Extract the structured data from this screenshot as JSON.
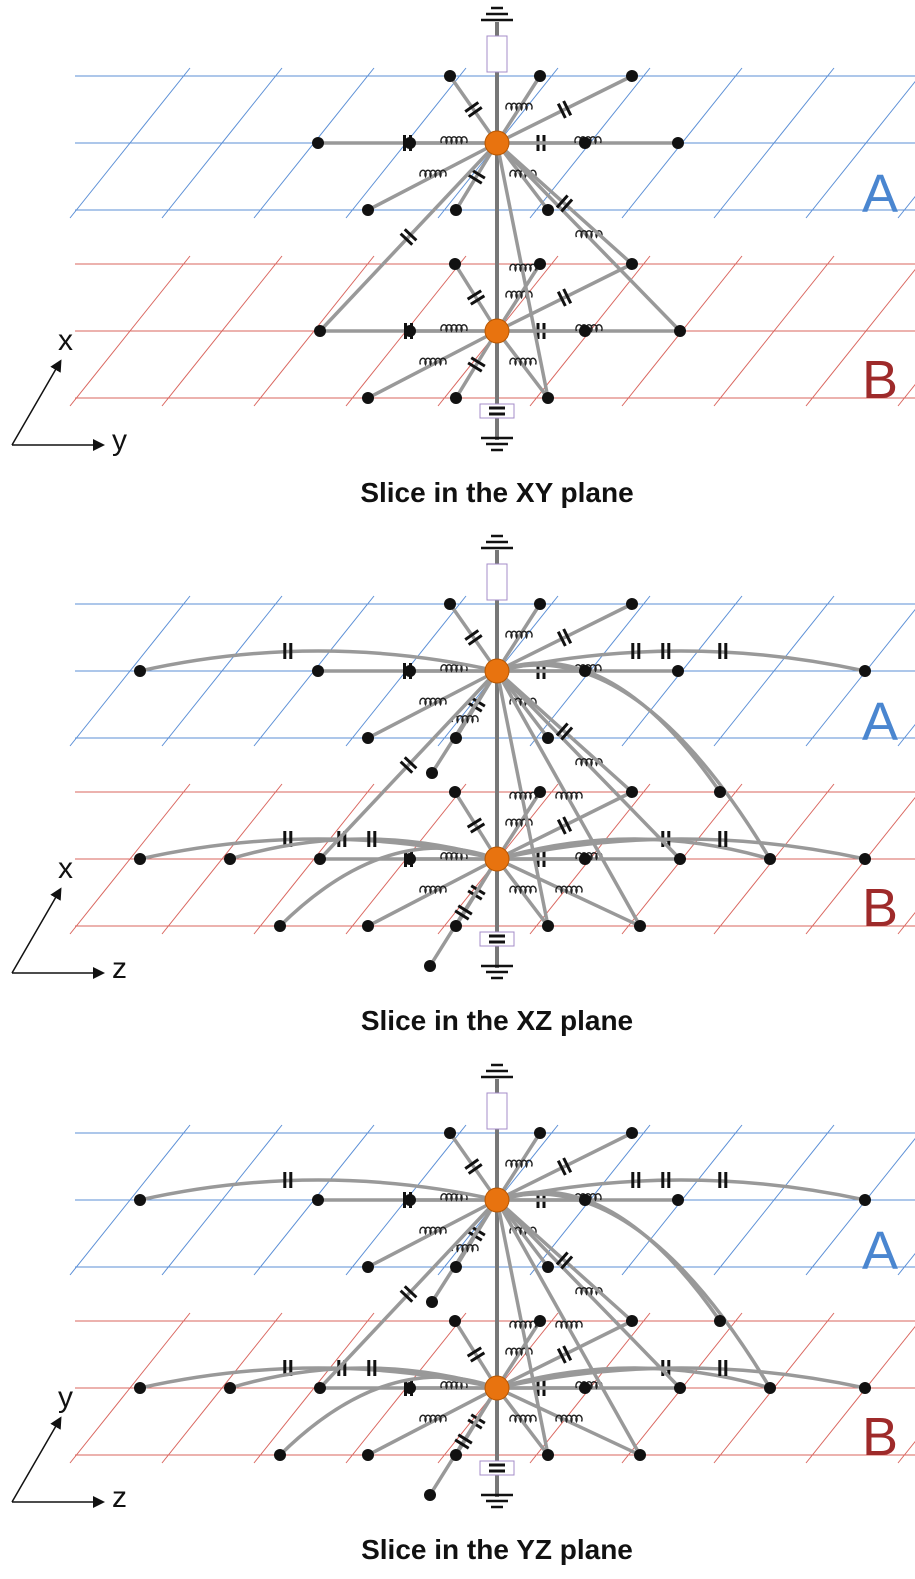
{
  "panels": [
    {
      "caption": "Slice in the XY plane",
      "axes": {
        "vertical": "x",
        "horizontal": "y"
      },
      "layers": {
        "upper": "A",
        "lower": "B"
      }
    },
    {
      "caption": "Slice in the XZ plane",
      "axes": {
        "vertical": "x",
        "horizontal": "z"
      },
      "layers": {
        "upper": "A",
        "lower": "B"
      }
    },
    {
      "caption": "Slice in the YZ plane",
      "axes": {
        "vertical": "y",
        "horizontal": "z"
      },
      "layers": {
        "upper": "A",
        "lower": "B"
      }
    }
  ]
}
